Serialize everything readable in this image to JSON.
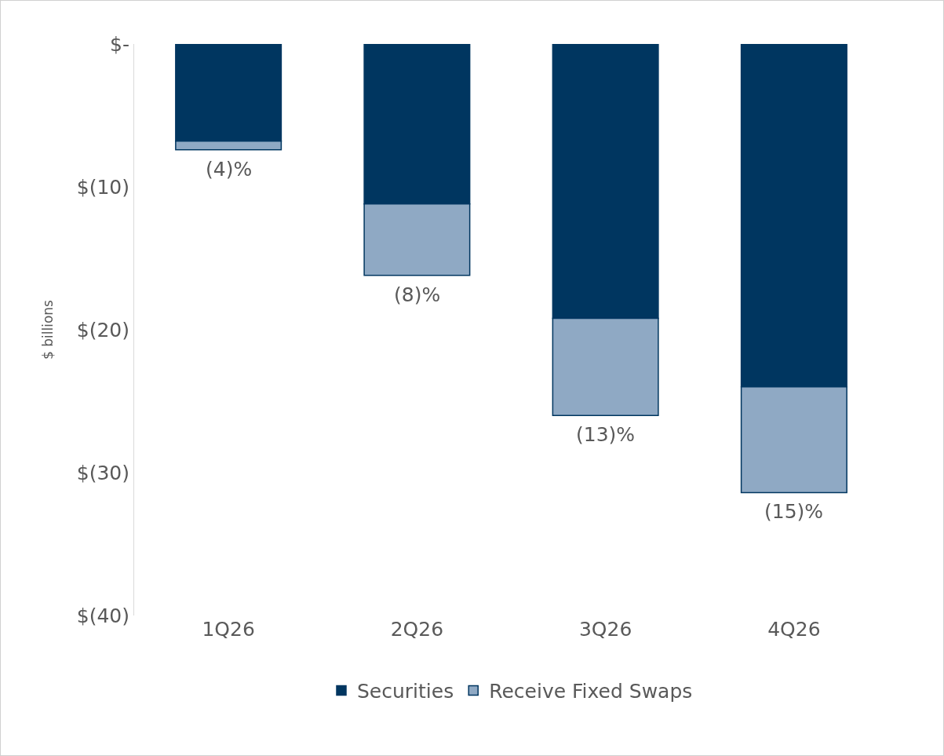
{
  "chart_data": {
    "type": "bar",
    "stacked": true,
    "ylabel": "$ billions",
    "categories": [
      "1Q26",
      "2Q26",
      "3Q26",
      "4Q26"
    ],
    "series": [
      {
        "name": "Securities",
        "color": "#003660",
        "values": [
          -6.8,
          -11.2,
          -19.2,
          -24.0
        ]
      },
      {
        "name": "Receive Fixed Swaps",
        "color": "#8fa9c4",
        "values": [
          -0.6,
          -5.0,
          -6.8,
          -7.4
        ]
      }
    ],
    "ylim": [
      -40,
      0
    ],
    "yticks": [
      {
        "value": 0,
        "label": "$-"
      },
      {
        "value": -10,
        "label": "$(10)"
      },
      {
        "value": -20,
        "label": "$(20)"
      },
      {
        "value": -30,
        "label": "$(30)"
      },
      {
        "value": -40,
        "label": "$(40)"
      }
    ],
    "annotations": [
      {
        "text": "(4)%",
        "x": "1Q26",
        "y": -7.4
      },
      {
        "text": "(8)%",
        "x": "2Q26",
        "y": -16.2
      },
      {
        "text": "(13)%",
        "x": "3Q26",
        "y": -26.0
      },
      {
        "text": "(15)%",
        "x": "4Q26",
        "y": -31.4
      }
    ],
    "grid": false,
    "legend": "bottom"
  }
}
